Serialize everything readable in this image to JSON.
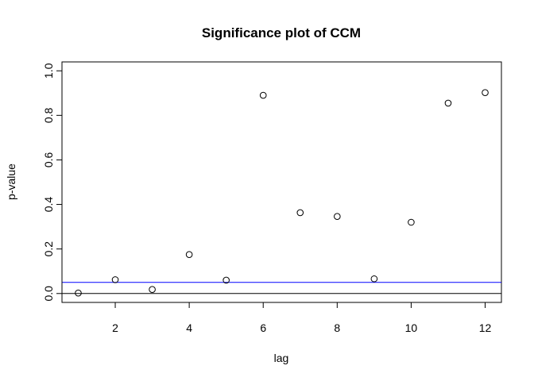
{
  "chart_data": {
    "type": "scatter",
    "title": "Significance plot of CCM",
    "xlabel": "lag",
    "ylabel": "p-value",
    "xlim": [
      0.56,
      12.44
    ],
    "ylim": [
      -0.04,
      1.04
    ],
    "x_ticks": [
      2,
      4,
      6,
      8,
      10,
      12
    ],
    "y_ticks": [
      0.0,
      0.2,
      0.4,
      0.6,
      0.8,
      1.0
    ],
    "x_tick_labels": [
      "2",
      "4",
      "6",
      "8",
      "10",
      "12"
    ],
    "y_tick_labels": [
      "0.0",
      "0.2",
      "0.4",
      "0.6",
      "0.8",
      "1.0"
    ],
    "grid": false,
    "points": {
      "x": [
        1,
        2,
        3,
        4,
        5,
        6,
        7,
        8,
        9,
        10,
        11,
        12
      ],
      "y": [
        0.002,
        0.062,
        0.018,
        0.175,
        0.06,
        0.89,
        0.363,
        0.346,
        0.066,
        0.32,
        0.855,
        0.902
      ]
    },
    "reference_lines": [
      {
        "y": 0.05,
        "color": "#0000ff"
      },
      {
        "y": 0.0,
        "color": "#000000"
      }
    ]
  }
}
